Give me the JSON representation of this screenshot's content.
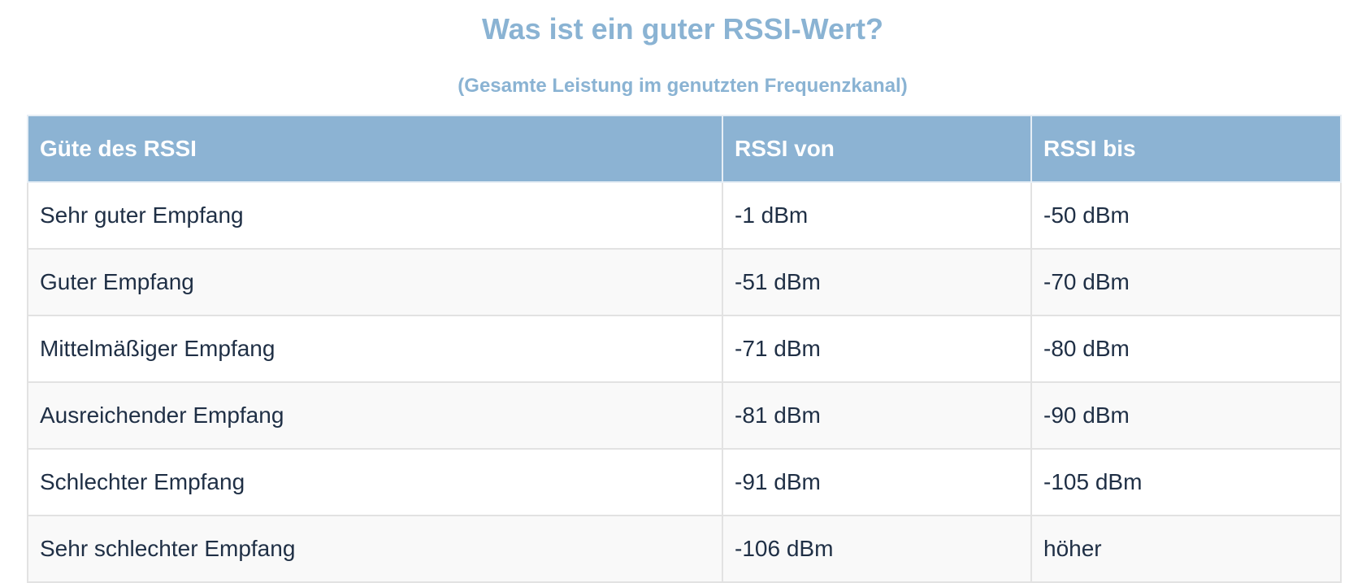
{
  "title": "Was ist ein guter RSSI-Wert?",
  "subtitle": "(Gesamte Leistung im genutzten Frequenzkanal)",
  "table": {
    "headers": [
      "Güte des RSSI",
      "RSSI von",
      "RSSI bis"
    ],
    "rows": [
      [
        "Sehr guter Empfang",
        "-1 dBm",
        "-50 dBm"
      ],
      [
        "Guter Empfang",
        "-51 dBm",
        "-70 dBm"
      ],
      [
        "Mittelmäßiger Empfang",
        "-71 dBm",
        "-80 dBm"
      ],
      [
        "Ausreichender Empfang",
        "-81 dBm",
        "-90 dBm"
      ],
      [
        "Schlechter Empfang",
        "-91 dBm",
        "-105 dBm"
      ],
      [
        "Sehr schlechter Empfang",
        "-106 dBm",
        "höher"
      ]
    ]
  },
  "colors": {
    "accent": "#8cb3d3",
    "text": "#1f2f45",
    "row_alt": "#f9f9f9",
    "border": "#e2e2e2"
  }
}
